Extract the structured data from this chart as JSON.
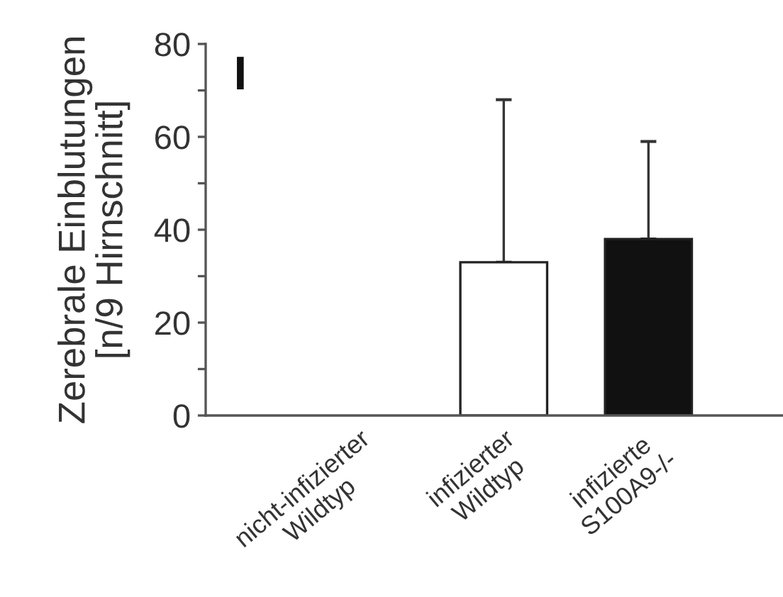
{
  "chart_data": {
    "type": "bar",
    "ylabel": "Zerebrale Einblutungen\n[n/9 Hirnschnitt]",
    "categories": [
      "nicht-infizierter\nWildtyp",
      "infizierter\nWildtyp",
      "infizierte\nS100A9-/-"
    ],
    "values": [
      0,
      33,
      38
    ],
    "colors": [
      "#ffffff",
      "#ffffff",
      "#111111"
    ],
    "errors": [
      null,
      [
        33,
        68
      ],
      [
        38,
        59
      ]
    ],
    "ylim": [
      0,
      80
    ],
    "yticks": [
      0,
      {
        "value": 10,
        "label": null
      },
      20,
      {
        "value": 30,
        "label": null
      },
      40,
      {
        "value": 50,
        "label": null
      },
      60,
      {
        "value": 70,
        "label": null
      },
      80
    ],
    "annotations": [
      "I"
    ],
    "grid": false,
    "legend": false
  }
}
